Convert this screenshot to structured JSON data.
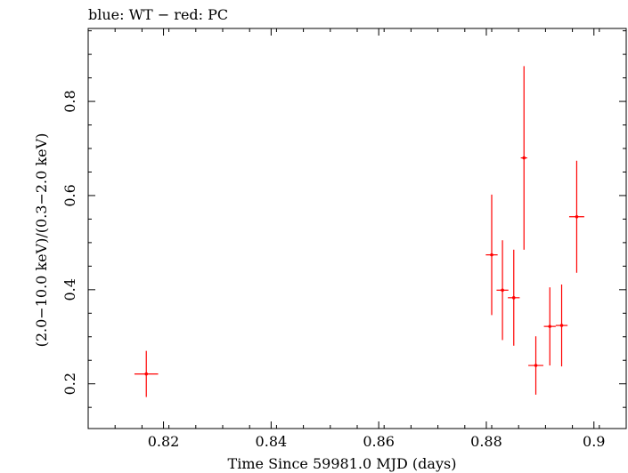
{
  "chart_data": {
    "type": "scatter",
    "title": "blue: WT − red: PC",
    "xlabel": "Time Since 59981.0 MJD (days)",
    "ylabel": "(2.0−10.0 keV)/(0.3−2.0 keV)",
    "xlim": [
      0.806,
      0.906
    ],
    "ylim": [
      0.105,
      0.955
    ],
    "x_ticks": [
      0.82,
      0.84,
      0.86,
      0.88,
      0.9
    ],
    "x_tick_labels": [
      "0.82",
      "0.84",
      "0.86",
      "0.88",
      "0.9"
    ],
    "y_ticks": [
      0.2,
      0.4,
      0.6,
      0.8
    ],
    "y_tick_labels": [
      "0.2",
      "0.4",
      "0.6",
      "0.8"
    ],
    "grid": false,
    "series": [
      {
        "color": "#ff0000",
        "points": [
          {
            "x": 0.8168,
            "y": 0.221,
            "xerr": 0.0022,
            "yerr_low": 0.049,
            "yerr_high": 0.049
          },
          {
            "x": 0.881,
            "y": 0.474,
            "xerr": 0.0011,
            "yerr_low": 0.128,
            "yerr_high": 0.128
          },
          {
            "x": 0.883,
            "y": 0.399,
            "xerr": 0.0011,
            "yerr_low": 0.106,
            "yerr_high": 0.106
          },
          {
            "x": 0.8851,
            "y": 0.383,
            "xerr": 0.0011,
            "yerr_low": 0.102,
            "yerr_high": 0.102
          },
          {
            "x": 0.887,
            "y": 0.68,
            "xerr": 0.0006,
            "yerr_low": 0.195,
            "yerr_high": 0.195
          },
          {
            "x": 0.8892,
            "y": 0.239,
            "xerr": 0.0014,
            "yerr_low": 0.062,
            "yerr_high": 0.062
          },
          {
            "x": 0.8918,
            "y": 0.322,
            "xerr": 0.0011,
            "yerr_low": 0.083,
            "yerr_high": 0.083
          },
          {
            "x": 0.894,
            "y": 0.324,
            "xerr": 0.0011,
            "yerr_low": 0.087,
            "yerr_high": 0.087
          },
          {
            "x": 0.8968,
            "y": 0.555,
            "xerr": 0.0014,
            "yerr_low": 0.119,
            "yerr_high": 0.119
          }
        ]
      }
    ]
  }
}
